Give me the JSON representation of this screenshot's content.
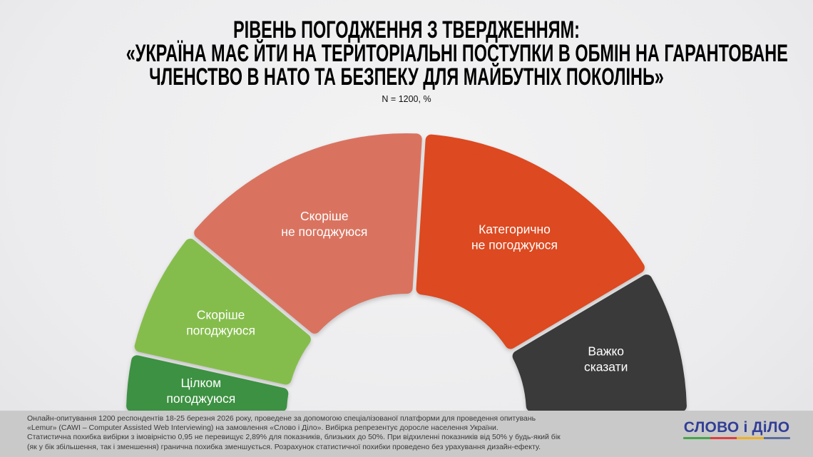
{
  "header": {
    "title_lines": [
      "РІВЕНЬ ПОГОДЖЕННЯ З ТВЕРДЖЕННЯМ:",
      "«УКРАЇНА МАЄ ЙТИ НА ТЕРИТОРІАЛЬНІ ПОСТУПКИ В ОБМІН НА ГАРАНТОВАНЕ",
      "ЧЛЕНСТВО В НАТО ТА БЕЗПЕКУ ДЛЯ МАЙБУТНІХ ПОКОЛІНЬ»"
    ],
    "subtitle": "N = 1200, %"
  },
  "chart_data": {
    "type": "pie",
    "variant": "semicircle-donut-gauge",
    "title": "РІВЕНЬ ПОГОДЖЕННЯ З ТВЕРДЖЕННЯМ: «УКРАЇНА МАЄ ЙТИ НА ТЕРИТОРІАЛЬНІ ПОСТУПКИ В ОБМІН НА ГАРАНТОВАНЕ ЧЛЕНСТВО В НАТО ТА БЕЗПЕКУ ДЛЯ МАЙБУТНІХ ПОКОЛІНЬ»",
    "subtitle": "N = 1200, %",
    "unit": "%",
    "categories": [
      "Цілком погоджуюся",
      "Скоріше погоджуюся",
      "Скоріше не погоджуюся",
      "Категорично не погоджуюся",
      "Важко сказати"
    ],
    "values": [
      7,
      15,
      30,
      31,
      17
    ],
    "values_estimated_from_arc_angles": true,
    "values_labels_shown": false,
    "colors": [
      "#3d9142",
      "#85bd4c",
      "#d97360",
      "#dd4920",
      "#3a3a3a"
    ],
    "label_lines": [
      [
        "Цілком",
        "погоджуюся"
      ],
      [
        "Скоріше",
        "погоджуюся"
      ],
      [
        "Скоріше",
        "не погоджуюся"
      ],
      [
        "Категорично",
        "не погоджуюся"
      ],
      [
        "Важко",
        "сказати"
      ]
    ],
    "layout": {
      "start_angle_deg": 180,
      "end_angle_deg": 0,
      "legend": "none",
      "label_position": "inside-segments",
      "label_color": "#ffffff"
    }
  },
  "footer": {
    "note_lines": [
      "Онлайн-опитування 1200 респондентів 18-25 березня 2026 року, проведене за допомогою спеціалізованої платформи для проведення опитувань",
      "«Lemur» (CAWI – Computer Assisted Web Interviewing) на замовлення «Слово і Діло». Вибірка репрезентує доросле населення України.",
      "Статистична похибка вибірки з імовірністю 0,95 не перевищує 2,89% для показників, близьких до 50%. При відхиленні показників від 50% у будь-який бік",
      "(як у бік збільшення, так і зменшення) гранична похибка зменшується. Розрахунок статистичної похибки проведено без урахування дизайн-ефекту."
    ],
    "logo": {
      "text": "СЛОВО і ДіЛО",
      "color": "#323f96",
      "underline_colors": [
        "#44a648",
        "#e03c3c",
        "#f2b01e",
        "#5b6e9b"
      ]
    }
  }
}
